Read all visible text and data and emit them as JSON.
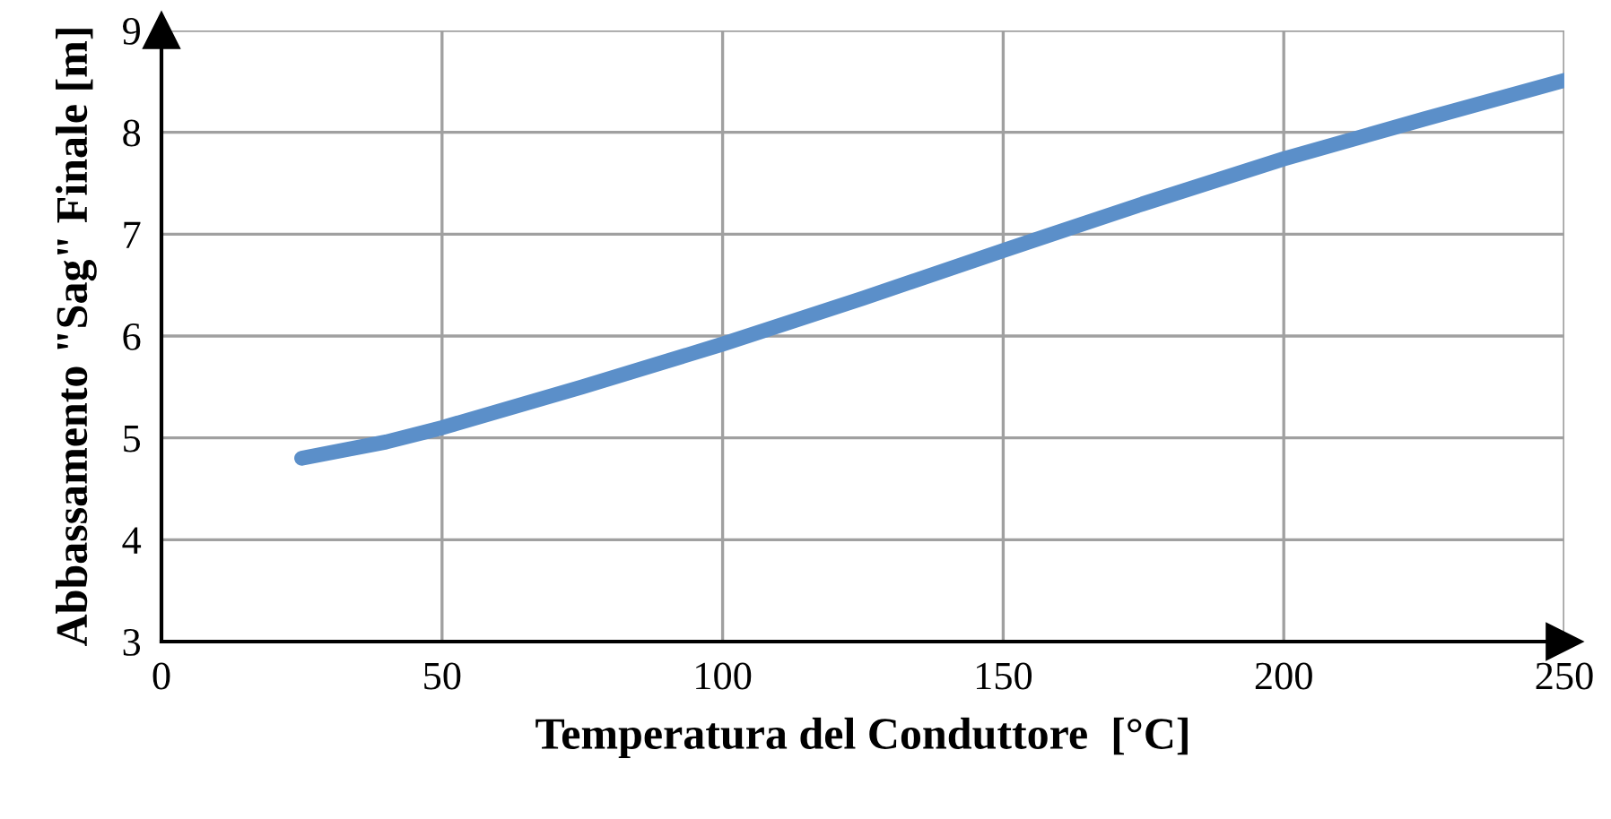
{
  "chart_data": {
    "type": "line",
    "xlabel": "Temperatura del Conduttore  [°C]",
    "ylabel": "Abbassamento \"Sag\" Finale [m]",
    "x": [
      25,
      40,
      50,
      75,
      100,
      125,
      150,
      175,
      200,
      225,
      250
    ],
    "series": [
      {
        "color": "#5b8fc9",
        "values": [
          4.8,
          4.96,
          5.1,
          5.5,
          5.92,
          6.37,
          6.84,
          7.3,
          7.74,
          8.13,
          8.51
        ]
      }
    ],
    "xlim": [
      0,
      250
    ],
    "xticks": [
      0,
      50,
      100,
      150,
      200,
      250
    ],
    "ylim": [
      3,
      9
    ],
    "yticks": [
      3,
      4,
      5,
      6,
      7,
      8,
      9
    ],
    "grid": true,
    "legend": false,
    "marker": "none",
    "line_style": "solid"
  }
}
